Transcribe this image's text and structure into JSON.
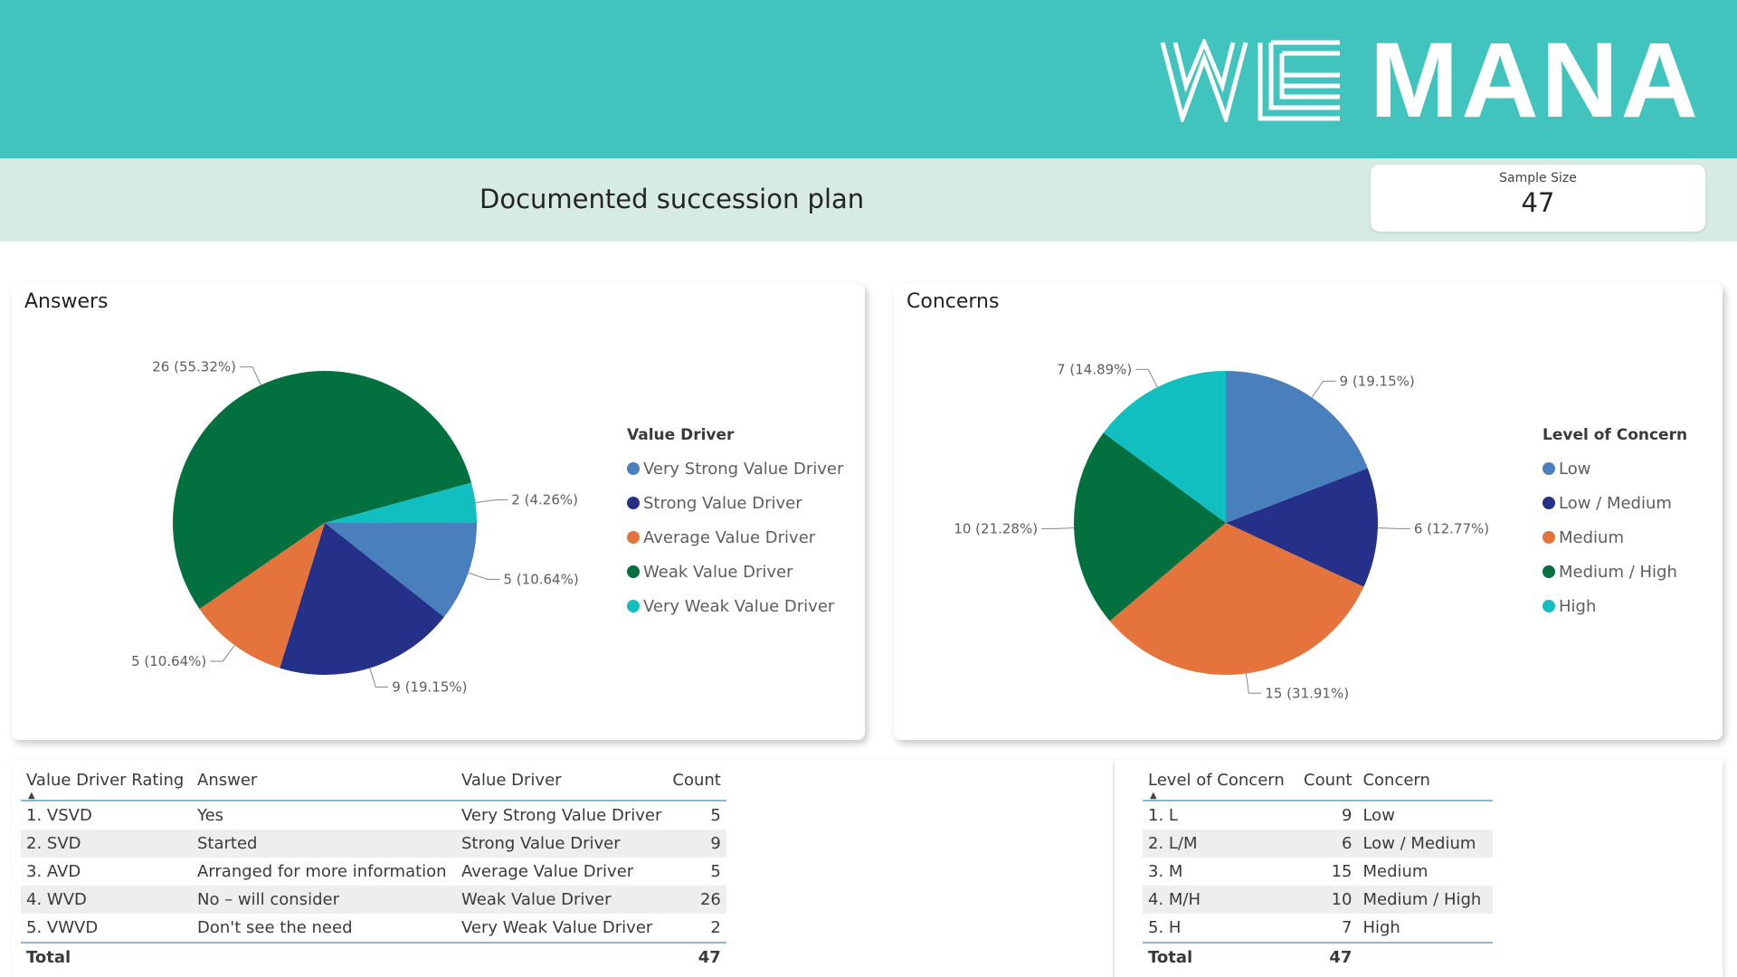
{
  "brand": {
    "logo_text_1": "WE",
    "logo_text_2": "MANA"
  },
  "header": {
    "title": "Documented succession plan"
  },
  "kpi": {
    "label": "Sample Size",
    "value": "47"
  },
  "chart_data": [
    {
      "type": "pie",
      "title": "Answers",
      "legend_title": "Value Driver",
      "legend_position": "right",
      "categories": [
        "Very Strong Value Driver",
        "Strong Value Driver",
        "Average Value Driver",
        "Weak Value Driver",
        "Very Weak Value Driver"
      ],
      "values": [
        5,
        9,
        5,
        26,
        2
      ],
      "data_labels": [
        "5 (10.64%)",
        "9 (19.15%)",
        "5 (10.64%)",
        "26 (55.32%)",
        "2 (4.26%)"
      ],
      "colors": [
        "#4a7fbd",
        "#253189",
        "#e5743c",
        "#02703f",
        "#12bfc0"
      ]
    },
    {
      "type": "pie",
      "title": "Concerns",
      "legend_title": "Level of Concern",
      "legend_position": "right",
      "categories": [
        "Low",
        "Low / Medium",
        "Medium",
        "Medium / High",
        "High"
      ],
      "values": [
        9,
        6,
        15,
        10,
        7
      ],
      "data_labels": [
        "9 (19.15%)",
        "6 (12.77%)",
        "15 (31.91%)",
        "10 (21.28%)",
        "7 (14.89%)"
      ],
      "colors": [
        "#4a7fbd",
        "#253189",
        "#e5743c",
        "#02703f",
        "#12bfc0"
      ]
    }
  ],
  "answers_table": {
    "headers": [
      "Value Driver Rating",
      "Answer",
      "Value Driver",
      "Count"
    ],
    "rows": [
      [
        "1. VSVD",
        "Yes",
        "Very Strong Value Driver",
        "5"
      ],
      [
        "2. SVD",
        "Started",
        "Strong Value Driver",
        "9"
      ],
      [
        "3. AVD",
        "Arranged for more information",
        "Average Value Driver",
        "5"
      ],
      [
        "4. WVD",
        "No – will consider",
        "Weak Value Driver",
        "26"
      ],
      [
        "5. VWVD",
        "Don't see the need",
        "Very Weak Value Driver",
        "2"
      ]
    ],
    "total_label": "Total",
    "total_value": "47"
  },
  "concerns_table": {
    "headers": [
      "Level of Concern",
      "Count",
      "Concern"
    ],
    "rows": [
      [
        "1. L",
        "9",
        "Low"
      ],
      [
        "2. L/M",
        "6",
        "Low / Medium"
      ],
      [
        "3. M",
        "15",
        "Medium"
      ],
      [
        "4. M/H",
        "10",
        "Medium / High"
      ],
      [
        "5. H",
        "7",
        "High"
      ]
    ],
    "total_label": "Total",
    "total_value": "47"
  }
}
